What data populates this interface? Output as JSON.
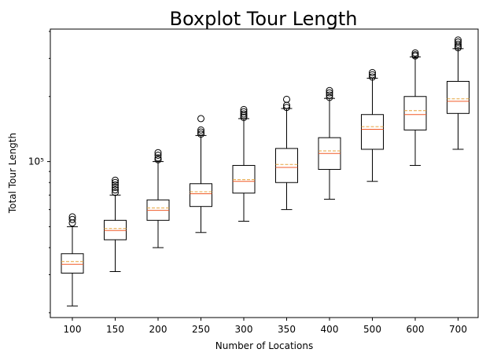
{
  "chart_data": {
    "type": "boxplot",
    "title": "Boxplot Tour Length",
    "xlabel": "Number of Locations",
    "ylabel": "Total Tour Length",
    "yscale": "log",
    "ylim": [
      19000,
      410000
    ],
    "y_tick_labels": [
      {
        "value": 100000,
        "label": "10⁵"
      }
    ],
    "categories": [
      "100",
      "150",
      "200",
      "250",
      "300",
      "350",
      "400",
      "500",
      "600",
      "700"
    ],
    "median_color": "#f05a28",
    "mean_color": "#e6a23c",
    "grid": false,
    "boxes": [
      {
        "category": "100",
        "whislo": 21500,
        "q1": 30500,
        "median": 33500,
        "mean": 34500,
        "q3": 37500,
        "whishi": 50000,
        "fliers": [
          52000,
          54000,
          55500
        ]
      },
      {
        "category": "150",
        "whislo": 31000,
        "q1": 43500,
        "median": 48000,
        "mean": 49000,
        "q3": 53500,
        "whishi": 70000,
        "fliers": [
          72000,
          74000,
          76000,
          78000,
          80000,
          82000
        ]
      },
      {
        "category": "200",
        "whislo": 40000,
        "q1": 53500,
        "median": 59500,
        "mean": 61000,
        "q3": 66500,
        "whishi": 100000,
        "fliers": [
          102000,
          104000,
          107000,
          110000
        ]
      },
      {
        "category": "250",
        "whislo": 47000,
        "q1": 62000,
        "median": 71000,
        "mean": 72500,
        "q3": 79000,
        "whishi": 132000,
        "fliers": [
          134000,
          137000,
          140000,
          158000
        ]
      },
      {
        "category": "300",
        "whislo": 53000,
        "q1": 71500,
        "median": 81000,
        "mean": 82500,
        "q3": 96000,
        "whishi": 158000,
        "fliers": [
          160000,
          163000,
          166000,
          170000,
          174000
        ]
      },
      {
        "category": "350",
        "whislo": 60000,
        "q1": 80000,
        "median": 94000,
        "mean": 97000,
        "q3": 115000,
        "whishi": 176000,
        "fliers": [
          178000,
          182000,
          194000
        ]
      },
      {
        "category": "400",
        "whislo": 67000,
        "q1": 92000,
        "median": 109000,
        "mean": 112000,
        "q3": 129000,
        "whishi": 196000,
        "fliers": [
          198000,
          203000,
          208000,
          213000
        ]
      },
      {
        "category": "500",
        "whislo": 81000,
        "q1": 114000,
        "median": 141000,
        "mean": 145000,
        "q3": 165000,
        "whishi": 243000,
        "fliers": [
          246000,
          252000,
          258000
        ]
      },
      {
        "category": "600",
        "whislo": 96000,
        "q1": 140000,
        "median": 165000,
        "mean": 172000,
        "q3": 200000,
        "whishi": 305000,
        "fliers": [
          308000,
          312000,
          318000
        ]
      },
      {
        "category": "700",
        "whislo": 114000,
        "q1": 167000,
        "median": 190000,
        "mean": 195000,
        "q3": 235000,
        "whishi": 333000,
        "fliers": [
          336000,
          342000,
          349000,
          357000,
          365000
        ]
      }
    ]
  }
}
